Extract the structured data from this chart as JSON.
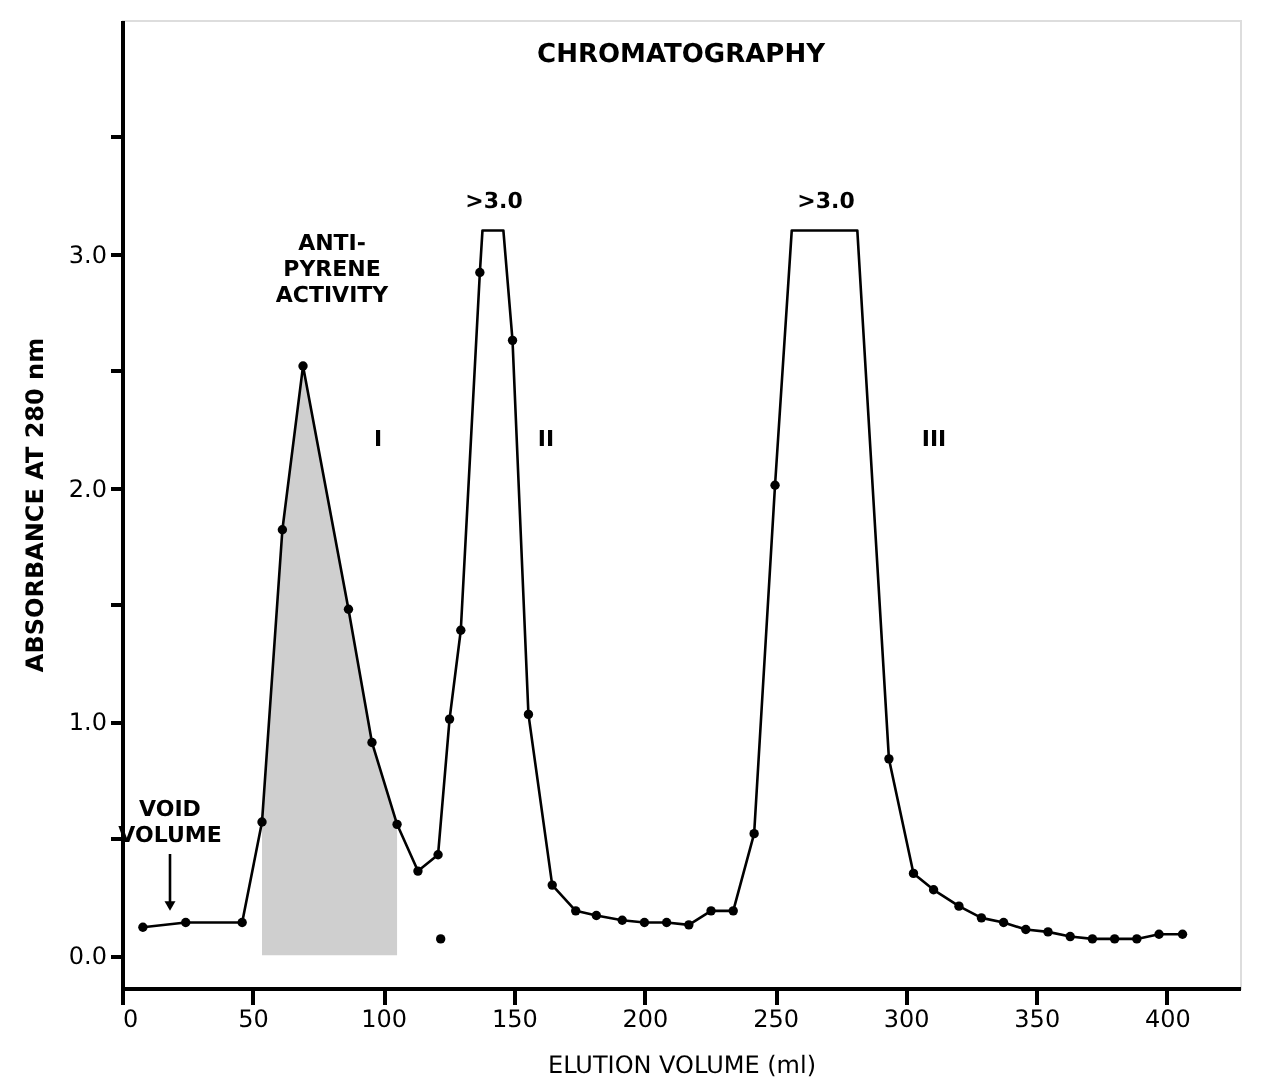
{
  "chart_data": {
    "type": "line",
    "title": "CHROMATOGRAPHY",
    "xlabel": "ELUTION VOLUME    (ml)",
    "ylabel": "ABSORBANCE  AT  280 nm",
    "xlim": [
      0,
      428
    ],
    "ylim": [
      -0.14,
      4.0
    ],
    "xticks": [
      0,
      50,
      100,
      150,
      200,
      250,
      300,
      350,
      400
    ],
    "yticks": [
      {
        "value": 0,
        "label": "0.0"
      },
      {
        "value": 0.5,
        "label": null
      },
      {
        "value": 1,
        "label": "1.0"
      },
      {
        "value": 1.5,
        "label": null
      },
      {
        "value": 2,
        "label": "2.0"
      },
      {
        "value": 2.5,
        "label": null
      },
      {
        "value": 3,
        "label": "3.0"
      },
      {
        "value": 3.5,
        "label": null
      }
    ],
    "grid": false,
    "series": [
      {
        "type": "area",
        "color": "#bbbbbb",
        "x": [
          53.6,
          61.4,
          69.3,
          86.7,
          95.7,
          105.3
        ],
        "values": [
          0.57,
          1.82,
          2.52,
          1.48,
          0.91,
          0.56
        ]
      },
      {
        "color": "#000000",
        "marker": "none",
        "x": [
          8,
          24.4,
          46,
          53.6,
          61.4,
          69.3,
          86.7,
          95.7,
          105.3,
          113.3,
          121,
          125.4,
          129.7,
          137,
          138,
          146,
          149.5,
          155.6,
          164.7,
          173.7,
          181.6,
          191.5,
          200,
          208.5,
          217,
          225.5,
          234,
          242,
          250,
          256.4,
          281.5,
          293.6,
          303,
          310.7,
          320.4,
          329,
          337.5,
          346,
          354.5,
          363,
          371.5,
          380,
          388.5,
          397,
          406
        ],
        "values": [
          0.12,
          0.14,
          0.14,
          0.57,
          1.82,
          2.52,
          1.48,
          0.91,
          0.56,
          0.36,
          0.43,
          1.01,
          1.39,
          2.92,
          3.1,
          3.1,
          2.63,
          1.03,
          0.3,
          0.19,
          0.17,
          0.15,
          0.14,
          0.14,
          0.13,
          0.19,
          0.19,
          0.52,
          2.01,
          3.1,
          3.1,
          0.84,
          0.35,
          0.28,
          0.21,
          0.16,
          0.14,
          0.11,
          0.1,
          0.08,
          0.07,
          0.07,
          0.07,
          0.09,
          0.09
        ]
      },
      {
        "type": "scatter",
        "color": "#000000",
        "marker": "circle",
        "x": [
          8,
          24.4,
          46,
          53.6,
          61.4,
          69.3,
          86.7,
          95.7,
          105.3,
          113.3,
          121,
          122,
          125.4,
          129.7,
          137,
          149.5,
          155.6,
          164.7,
          173.7,
          181.6,
          191.5,
          200,
          208.5,
          217,
          225.5,
          234,
          242,
          250,
          293.6,
          303,
          310.7,
          320.4,
          329,
          337.5,
          346,
          354.5,
          363,
          371.5,
          380,
          388.5,
          397,
          406
        ],
        "values": [
          0.12,
          0.14,
          0.14,
          0.57,
          1.82,
          2.52,
          1.48,
          0.91,
          0.56,
          0.36,
          0.43,
          0.07,
          1.01,
          1.39,
          2.92,
          2.63,
          1.03,
          0.3,
          0.19,
          0.17,
          0.15,
          0.14,
          0.14,
          0.13,
          0.19,
          0.19,
          0.52,
          2.01,
          0.84,
          0.35,
          0.28,
          0.21,
          0.16,
          0.14,
          0.11,
          0.1,
          0.08,
          0.07,
          0.07,
          0.07,
          0.09,
          0.09
        ]
      }
    ],
    "annotations": [
      "ANTI-\nPYRENE\nACTIVITY",
      "I",
      "II",
      "III",
      ">3.0",
      ">3.0",
      "VOID\nVOLUME"
    ]
  }
}
